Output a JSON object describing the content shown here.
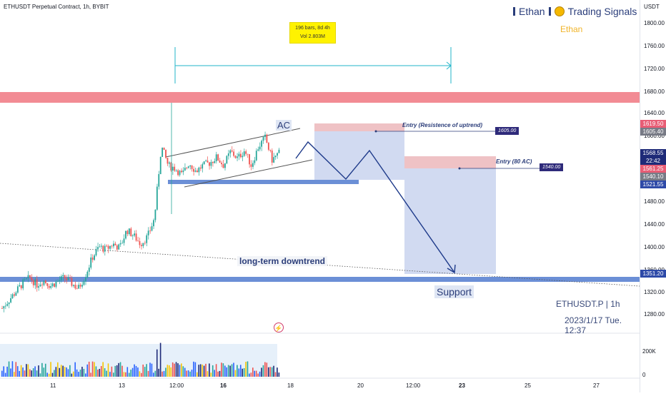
{
  "header": {
    "title": "ETHUSDT Perpetual Contract, 1h, BYBIT"
  },
  "brand": {
    "name": "Ethan",
    "signals": "Trading Signals",
    "subtitle": "Ethan"
  },
  "measure": {
    "line1": "196 bars, 8d 4h",
    "line2": "Vol 2.803M"
  },
  "annotations": {
    "ac": "AC",
    "entry1": "Entry (Resistence of uptrend)",
    "entry1_value": "1605.00",
    "entry2": "Entry (80 AC)",
    "entry2_value": "1540.00",
    "downtrend": "long-term downtrend",
    "support": "Support",
    "symbol": "ETHUSDT.P | 1h",
    "datetime": "2023/1/17 Tue. 12:37"
  },
  "price_axis": {
    "currency": "USDT",
    "ticks": [
      "1800.00",
      "1760.00",
      "1720.00",
      "1680.00",
      "1640.00",
      "1600.00",
      "1480.00",
      "1440.00",
      "1400.00",
      "1360.00",
      "1320.00",
      "1280.00"
    ],
    "tags": [
      {
        "label": "1619.50",
        "color": "#e85d75"
      },
      {
        "label": "1605.40",
        "color": "#787b86"
      },
      {
        "label": "1568.55",
        "color": "#1e2a78"
      },
      {
        "label": "22:42",
        "color": "#1e2a78"
      },
      {
        "label": "1561.25",
        "color": "#e85d75"
      },
      {
        "label": "1540.10",
        "color": "#787b86"
      },
      {
        "label": "1521.55",
        "color": "#2e4aa8"
      },
      {
        "label": "1351.20",
        "color": "#2e4aa8"
      }
    ],
    "volume_ticks": [
      "200K",
      "0"
    ]
  },
  "time_axis": [
    "11",
    "13",
    "12:00",
    "16",
    "18",
    "20",
    "12:00",
    "23",
    "25",
    "27"
  ],
  "chart_data": {
    "type": "candlestick",
    "symbol": "ETHUSDT Perpetual Contract",
    "interval": "1h",
    "exchange": "BYBIT",
    "ylim": [
      1250,
      1830
    ],
    "y_unit": "USDT",
    "levels": {
      "resistance_zone": 1672,
      "channel_base": 1521.55,
      "support": 1351.2,
      "entry_resistance_uptrend": 1605.0,
      "entry_80_ac": 1540.0,
      "last_price": 1568.55
    },
    "price_path": [
      1290,
      1305,
      1320,
      1335,
      1345,
      1332,
      1340,
      1330,
      1338,
      1345,
      1335,
      1325,
      1348,
      1380,
      1400,
      1395,
      1405,
      1398,
      1430,
      1420,
      1405,
      1418,
      1450,
      1580,
      1545,
      1540,
      1528,
      1550,
      1535,
      1545,
      1550,
      1560,
      1545,
      1570,
      1558,
      1572,
      1545,
      1578,
      1595,
      1555,
      1568
    ],
    "projection_path": [
      1570,
      1610,
      1535,
      1575,
      1355
    ]
  }
}
